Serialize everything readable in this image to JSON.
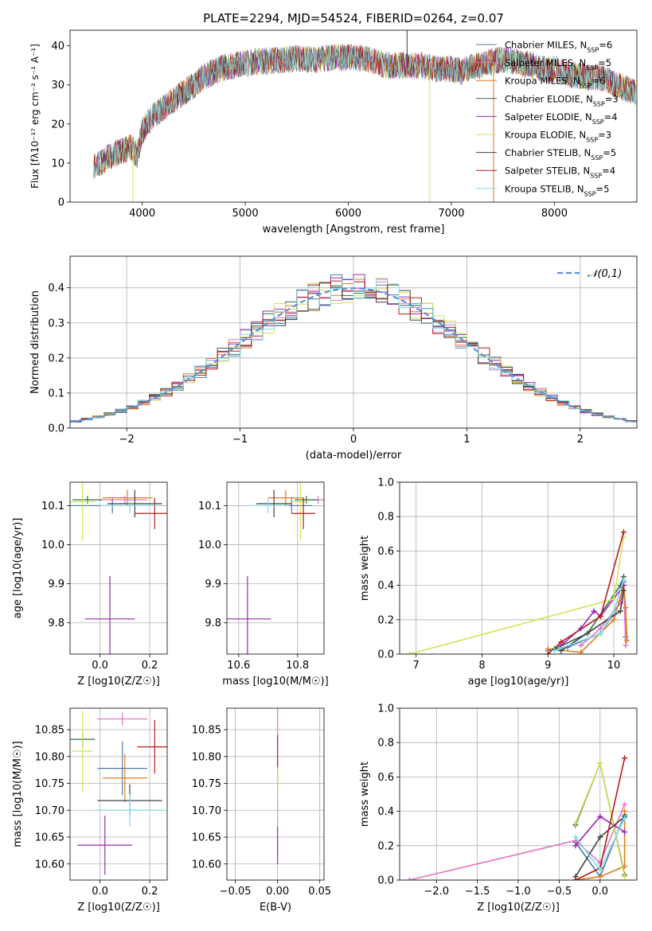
{
  "figure": {
    "title": "PLATE=2294, MJD=54524, FIBERID=0264, z=0.07"
  },
  "chart_data": [
    {
      "type": "line",
      "name": "spectrum",
      "title": "PLATE=2294, MJD=54524, FIBERID=0264, z=0.07",
      "xlabel": "wavelength [Angstrom, rest frame]",
      "ylabel": "Flux [fλ10⁻¹⁷ erg cm⁻² s⁻¹ A⁻¹]",
      "xlim": [
        3300,
        8800
      ],
      "ylim": [
        0,
        44
      ],
      "xticks": [
        4000,
        5000,
        6000,
        7000,
        8000
      ],
      "yticks": [
        0,
        10,
        20,
        30,
        40
      ],
      "grid": false,
      "legend_position": "top-right",
      "continuum": {
        "x": [
          3530,
          3600,
          3700,
          3800,
          3900,
          3950,
          4000,
          4100,
          4200,
          4300,
          4400,
          4500,
          4600,
          4700,
          4800,
          4900,
          5000,
          5100,
          5200,
          5300,
          5400,
          5500,
          5600,
          5700,
          5800,
          5900,
          6000,
          6100,
          6200,
          6300,
          6400,
          6500,
          6600,
          6700,
          6800,
          6900,
          7000,
          7100,
          7200,
          7300,
          7400,
          7500,
          7600,
          7700,
          7800,
          7900,
          8000,
          8100,
          8200,
          8300,
          8400,
          8500,
          8600,
          8700,
          8790
        ],
        "y": [
          9,
          10,
          12,
          13,
          14,
          12,
          18,
          22,
          24,
          26,
          28,
          30,
          32,
          33.5,
          34.5,
          35,
          35.5,
          36,
          36,
          36.2,
          36.5,
          36.8,
          36.5,
          36.5,
          37,
          37,
          37,
          37,
          36.5,
          35.5,
          35,
          35,
          35,
          35,
          34.5,
          34,
          34,
          33.5,
          34.5,
          35,
          36,
          36.5,
          36,
          35.5,
          35,
          34,
          34,
          33,
          32.5,
          32,
          32,
          31.5,
          30,
          29,
          28
        ]
      },
      "series": [
        {
          "name": "Chabrier MILES, N_SSP=6",
          "color": "#4e79a7"
        },
        {
          "name": "Salpeter MILES, N_SSP=5",
          "color": "#e377c2"
        },
        {
          "name": "Kroupa MILES, N_SSP=6",
          "color": "#e07b1f"
        },
        {
          "name": "Chabrier ELODIE, N_SSP=3",
          "color": "#2f6f45"
        },
        {
          "name": "Salpeter ELODIE, N_SSP=4",
          "color": "#9c27b0"
        },
        {
          "name": "Kroupa ELODIE, N_SSP=3",
          "color": "#d4e157"
        },
        {
          "name": "Chabrier STELIB, N_SSP=5",
          "color": "#404040"
        },
        {
          "name": "Salpeter STELIB, N_SSP=4",
          "color": "#b71c1c"
        },
        {
          "name": "Kroupa STELIB, N_SSP=5",
          "color": "#80deea"
        }
      ],
      "legend": [
        {
          "prefix": "Chabrier MILES, N",
          "sub": "SSP",
          "suffix": "=6"
        },
        {
          "prefix": "Salpeter MILES, N",
          "sub": "SSP",
          "suffix": "=5"
        },
        {
          "prefix": "Kroupa MILES, N",
          "sub": "SSP",
          "suffix": "=6"
        },
        {
          "prefix": "Chabrier ELODIE, N",
          "sub": "SSP",
          "suffix": "=3"
        },
        {
          "prefix": "Salpeter ELODIE, N",
          "sub": "SSP",
          "suffix": "=4"
        },
        {
          "prefix": "Kroupa ELODIE, N",
          "sub": "SSP",
          "suffix": "=3"
        },
        {
          "prefix": "Chabrier STELIB, N",
          "sub": "SSP",
          "suffix": "=5"
        },
        {
          "prefix": "Salpeter STELIB, N",
          "sub": "SSP",
          "suffix": "=4"
        },
        {
          "prefix": "Kroupa STELIB, N",
          "sub": "SSP",
          "suffix": "=5"
        }
      ],
      "features": [
        {
          "x": 3910,
          "ymin": 0,
          "ymax": 14,
          "color": "#d4e157"
        },
        {
          "x": 6790,
          "ymin": 0,
          "ymax": 36,
          "color": "#d4e157"
        },
        {
          "x": 7410,
          "ymin": 0,
          "ymax": 36,
          "color": "#e07b1f"
        },
        {
          "x": 6570,
          "ymin": 35,
          "ymax": 44,
          "color": "#404040"
        }
      ]
    },
    {
      "type": "step",
      "name": "residual-histogram",
      "xlabel": "(data-model)/error",
      "ylabel": "Normed distribution",
      "xlim": [
        -2.5,
        2.5
      ],
      "ylim": [
        0,
        0.49
      ],
      "xticks": [
        -2,
        -1,
        0,
        1,
        2
      ],
      "yticks": [
        0.0,
        0.1,
        0.2,
        0.3,
        0.4
      ],
      "grid": true,
      "legend_position": "top-right",
      "normal_curve": {
        "label": "𝒩(0,1)",
        "mean": 0,
        "sigma": 1,
        "color": "#5b8fd6"
      },
      "bin_width": 0.1,
      "series_seeds": [
        3,
        7,
        11,
        5,
        13,
        17,
        19,
        23,
        29
      ]
    },
    {
      "type": "scatter",
      "name": "age-vs-Z",
      "xlabel": "Z [log10(Z/Z☉)]",
      "ylabel": "age  [log10(age/yr)]",
      "xlim": [
        -0.12,
        0.27
      ],
      "ylim": [
        9.72,
        10.16
      ],
      "xticks": [
        0.0,
        0.2
      ],
      "yticks": [
        9.8,
        9.9,
        10.0,
        10.1
      ],
      "grid": true,
      "points": [
        {
          "x": 0.05,
          "y": 10.1,
          "xerr": 0.17,
          "yerr": 0.02,
          "color": "#4e79a7"
        },
        {
          "x": 0.1,
          "y": 10.115,
          "xerr": 0.09,
          "yerr": 0.01,
          "color": "#e377c2"
        },
        {
          "x": 0.11,
          "y": 10.12,
          "xerr": 0.1,
          "yerr": 0.02,
          "color": "#e07b1f"
        },
        {
          "x": -0.05,
          "y": 10.115,
          "xerr": 0.06,
          "yerr": 0.01,
          "color": "#2f6f45"
        },
        {
          "x": 0.04,
          "y": 9.81,
          "xerr": 0.1,
          "yerr": 0.11,
          "color": "#9c27b0"
        },
        {
          "x": -0.07,
          "y": 10.11,
          "xerr": 0.05,
          "yerr": 0.1,
          "color": "#d4e157"
        },
        {
          "x": 0.14,
          "y": 10.105,
          "xerr": 0.11,
          "yerr": 0.035,
          "color": "#404040"
        },
        {
          "x": 0.22,
          "y": 10.08,
          "xerr": 0.08,
          "yerr": 0.04,
          "color": "#b71c1c"
        },
        {
          "x": 0.12,
          "y": 10.1,
          "xerr": 0.12,
          "yerr": 0.02,
          "color": "#80deea"
        }
      ]
    },
    {
      "type": "scatter",
      "name": "age-vs-mass",
      "xlabel": "mass [log10(M/M☉)]",
      "ylabel": "",
      "xlim": [
        10.56,
        10.89
      ],
      "ylim": [
        9.72,
        10.16
      ],
      "xticks": [
        10.6,
        10.8
      ],
      "yticks": [
        9.8,
        9.9,
        10.0,
        10.1
      ],
      "grid": true,
      "points": [
        {
          "x": 10.78,
          "y": 10.1,
          "xerr": 0.07,
          "yerr": 0.02,
          "color": "#4e79a7"
        },
        {
          "x": 10.87,
          "y": 10.115,
          "xerr": 0.03,
          "yerr": 0.01,
          "color": "#e377c2"
        },
        {
          "x": 10.76,
          "y": 10.12,
          "xerr": 0.06,
          "yerr": 0.02,
          "color": "#e07b1f"
        },
        {
          "x": 10.83,
          "y": 10.115,
          "xerr": 0.04,
          "yerr": 0.01,
          "color": "#2f6f45"
        },
        {
          "x": 10.63,
          "y": 9.81,
          "xerr": 0.08,
          "yerr": 0.11,
          "color": "#9c27b0"
        },
        {
          "x": 10.81,
          "y": 10.11,
          "xerr": 0.03,
          "yerr": 0.1,
          "color": "#d4e157"
        },
        {
          "x": 10.72,
          "y": 10.105,
          "xerr": 0.06,
          "yerr": 0.035,
          "color": "#404040"
        },
        {
          "x": 10.82,
          "y": 10.08,
          "xerr": 0.04,
          "yerr": 0.04,
          "color": "#b71c1c"
        },
        {
          "x": 10.7,
          "y": 10.1,
          "xerr": 0.07,
          "yerr": 0.02,
          "color": "#80deea"
        }
      ]
    },
    {
      "type": "line",
      "name": "mass-weight-vs-age",
      "xlabel": "age  [log10(age/yr)]",
      "ylabel": "mass weight",
      "xlim": [
        6.75,
        10.35
      ],
      "ylim": [
        0,
        1
      ],
      "xticks": [
        7,
        8,
        9,
        10
      ],
      "yticks": [
        0.0,
        0.2,
        0.4,
        0.6,
        0.8,
        1.0
      ],
      "grid": true,
      "series": [
        {
          "color": "#4e79a7",
          "x": [
            9.0,
            9.3,
            9.8,
            10.1,
            10.15,
            10.18
          ],
          "y": [
            0.02,
            0.04,
            0.12,
            0.3,
            0.42,
            0.1
          ]
        },
        {
          "color": "#e377c2",
          "x": [
            9.5,
            9.8,
            10.1,
            10.15,
            10.18
          ],
          "y": [
            0.05,
            0.15,
            0.3,
            0.45,
            0.05
          ]
        },
        {
          "color": "#e07b1f",
          "x": [
            9.0,
            9.5,
            10.0,
            10.15,
            10.18,
            10.2
          ],
          "y": [
            0.03,
            0.01,
            0.2,
            0.4,
            0.27,
            0.08
          ]
        },
        {
          "color": "#2f6f45",
          "x": [
            9.1,
            9.6,
            10.1,
            10.15
          ],
          "y": [
            0.03,
            0.12,
            0.4,
            0.45
          ]
        },
        {
          "color": "#9c27b0",
          "x": [
            9.2,
            9.5,
            9.7,
            9.8,
            10.15
          ],
          "y": [
            0.05,
            0.15,
            0.25,
            0.22,
            0.4
          ]
        },
        {
          "color": "#d4e157",
          "x": [
            6.9,
            10.0,
            10.15
          ],
          "y": [
            0.0,
            0.32,
            0.68
          ]
        },
        {
          "color": "#404040",
          "x": [
            9.2,
            10.1,
            10.15
          ],
          "y": [
            0.02,
            0.25,
            0.37
          ]
        },
        {
          "color": "#b71c1c",
          "x": [
            9.0,
            9.2,
            9.8,
            10.15
          ],
          "y": [
            0.0,
            0.07,
            0.22,
            0.71
          ]
        },
        {
          "color": "#80deea",
          "x": [
            9.1,
            9.8,
            10.0,
            10.15
          ],
          "y": [
            0.02,
            0.12,
            0.25,
            0.43
          ]
        }
      ]
    },
    {
      "type": "scatter",
      "name": "mass-vs-Z",
      "xlabel": "Z [log10(Z/Z☉)]",
      "ylabel": "mass [log10(M/M☉)]",
      "xlim": [
        -0.12,
        0.27
      ],
      "ylim": [
        10.57,
        10.89
      ],
      "xticks": [
        0.0,
        0.2
      ],
      "yticks": [
        10.6,
        10.65,
        10.7,
        10.75,
        10.8,
        10.85
      ],
      "grid": true,
      "points": [
        {
          "x": 0.09,
          "y": 10.778,
          "xerr": 0.1,
          "yerr": 0.05,
          "color": "#4e79a7"
        },
        {
          "x": 0.09,
          "y": 10.87,
          "xerr": 0.1,
          "yerr": 0.012,
          "color": "#e377c2"
        },
        {
          "x": 0.1,
          "y": 10.76,
          "xerr": 0.09,
          "yerr": 0.045,
          "color": "#e07b1f"
        },
        {
          "x": -0.07,
          "y": 10.832,
          "xerr": 0.05,
          "yerr": 0.015,
          "color": "#2f6f45"
        },
        {
          "x": 0.02,
          "y": 10.635,
          "xerr": 0.11,
          "yerr": 0.055,
          "color": "#9c27b0"
        },
        {
          "x": -0.07,
          "y": 10.81,
          "xerr": 0.04,
          "yerr": 0.075,
          "color": "#d4e157"
        },
        {
          "x": 0.12,
          "y": 10.718,
          "xerr": 0.13,
          "yerr": 0.03,
          "color": "#404040"
        },
        {
          "x": 0.22,
          "y": 10.818,
          "xerr": 0.07,
          "yerr": 0.05,
          "color": "#b71c1c"
        },
        {
          "x": 0.12,
          "y": 10.7,
          "xerr": 0.14,
          "yerr": 0.03,
          "color": "#80deea"
        }
      ]
    },
    {
      "type": "scatter",
      "name": "mass-vs-EBV",
      "xlabel": "E(B-V)",
      "ylabel": "",
      "xlim": [
        -0.06,
        0.055
      ],
      "ylim": [
        10.57,
        10.89
      ],
      "xticks": [
        -0.05,
        0.0,
        0.05
      ],
      "yticks": [
        10.6,
        10.65,
        10.7,
        10.75,
        10.8,
        10.85
      ],
      "grid": true,
      "points": [
        {
          "x": 0.0,
          "y": 10.86,
          "xerr": 0.0,
          "yerr": 0.03,
          "color": "#e377c2"
        },
        {
          "x": 0.0,
          "y": 10.78,
          "xerr": 0.0,
          "yerr": 0.06,
          "color": "#b71c1c"
        },
        {
          "x": 0.0,
          "y": 10.73,
          "xerr": 0.0,
          "yerr": 0.05,
          "color": "#d4e157"
        },
        {
          "x": 0.0,
          "y": 10.66,
          "xerr": 0.0,
          "yerr": 0.06,
          "color": "#9c27b0"
        },
        {
          "x": 0.0,
          "y": 10.7,
          "xerr": 0.0,
          "yerr": 0.03,
          "color": "#80deea"
        }
      ]
    },
    {
      "type": "line",
      "name": "mass-weight-vs-Z",
      "xlabel": "Z [log10(Z/Z☉)]",
      "ylabel": "mass weight",
      "xlim": [
        -2.45,
        0.45
      ],
      "ylim": [
        0,
        1
      ],
      "xticks": [
        -2.0,
        -1.5,
        -1.0,
        -0.5,
        0.0
      ],
      "yticks": [
        0.0,
        0.2,
        0.4,
        0.6,
        0.8,
        1.0
      ],
      "grid": true,
      "series": [
        {
          "color": "#4e79a7",
          "x": [
            -0.3,
            0.0,
            0.3
          ],
          "y": [
            0.22,
            0.02,
            0.38
          ]
        },
        {
          "color": "#e377c2",
          "x": [
            -2.33,
            -0.3,
            0.0,
            0.3
          ],
          "y": [
            0.0,
            0.23,
            0.1,
            0.44
          ]
        },
        {
          "color": "#e07b1f",
          "x": [
            -0.3,
            0.0,
            0.3,
            0.3
          ],
          "y": [
            0.0,
            0.02,
            0.08,
            0.4
          ]
        },
        {
          "color": "#2f6f45",
          "x": [
            -0.3,
            0.0,
            0.3
          ],
          "y": [
            0.32,
            0.68,
            0.03
          ]
        },
        {
          "color": "#9c27b0",
          "x": [
            -0.3,
            0.0,
            0.3
          ],
          "y": [
            0.2,
            0.37,
            0.28
          ]
        },
        {
          "color": "#d4e157",
          "x": [
            -0.3,
            0.0,
            0.3
          ],
          "y": [
            0.33,
            0.68,
            0.02
          ]
        },
        {
          "color": "#404040",
          "x": [
            -0.3,
            0.0,
            0.3
          ],
          "y": [
            0.02,
            0.25,
            0.37
          ]
        },
        {
          "color": "#b71c1c",
          "x": [
            -0.3,
            0.0,
            0.3
          ],
          "y": [
            0.0,
            0.07,
            0.71
          ]
        },
        {
          "color": "#80deea",
          "x": [
            -0.3,
            0.0,
            0.3
          ],
          "y": [
            0.25,
            0.06,
            0.36
          ]
        }
      ]
    }
  ]
}
